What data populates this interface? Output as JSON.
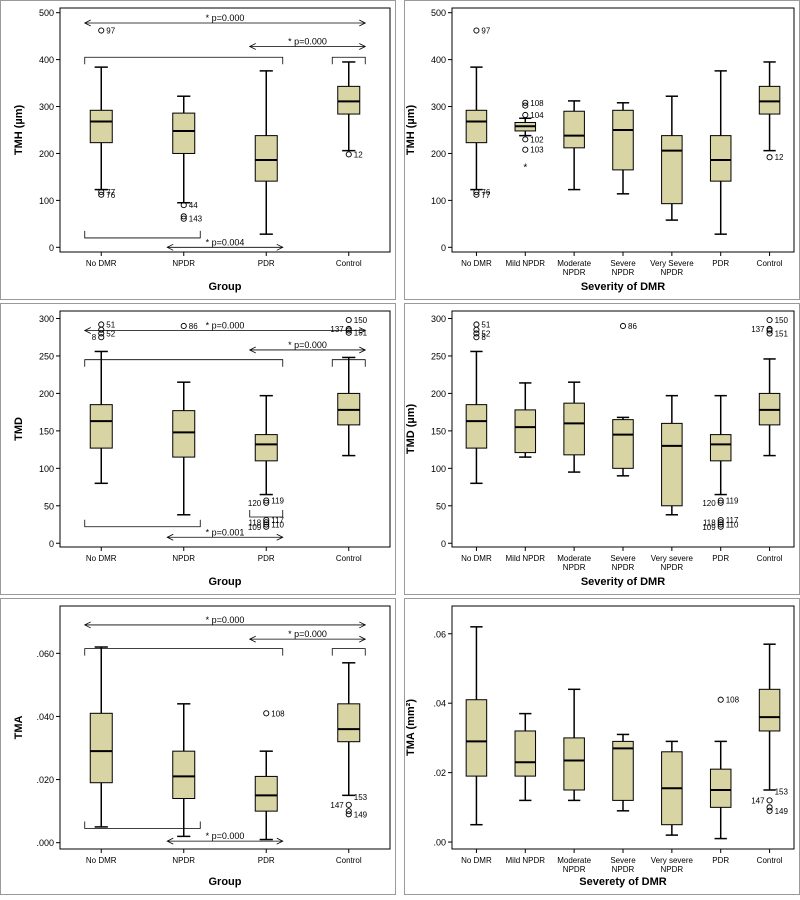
{
  "colors": {
    "box_fill": "#d9d4a3",
    "box_stroke": "#000000",
    "background": "#ffffff"
  },
  "chart_data": [
    {
      "type": "box",
      "xlabel": "Group",
      "ylabel": "TMH (µm)",
      "ylim": [
        -10,
        510
      ],
      "yticks": [
        0,
        100,
        200,
        300,
        400,
        500
      ],
      "ytick_labels": [
        "0",
        "100",
        "200",
        "300",
        "400",
        "500"
      ],
      "categories": [
        "No DMR",
        "NPDR",
        "PDR",
        "Control"
      ],
      "boxes": [
        {
          "min": 123,
          "q1": 223,
          "median": 268,
          "q3": 292,
          "max": 384,
          "outliers": [
            {
              "v": 462,
              "label": "97",
              "side": "r"
            },
            {
              "v": 118,
              "label": "77",
              "side": "r"
            },
            {
              "v": 112,
              "label": "76",
              "side": "r"
            }
          ]
        },
        {
          "min": 95,
          "q1": 200,
          "median": 248,
          "q3": 286,
          "max": 322,
          "outliers": [
            {
              "v": 90,
              "label": "44",
              "side": "r"
            },
            {
              "v": 66,
              "label": "",
              "side": "r"
            },
            {
              "v": 61,
              "label": "143",
              "side": "r"
            }
          ]
        },
        {
          "min": 28,
          "q1": 141,
          "median": 186,
          "q3": 238,
          "max": 376,
          "outliers": []
        },
        {
          "min": 206,
          "q1": 284,
          "median": 311,
          "q3": 343,
          "max": 395,
          "outliers": [
            {
              "v": 198,
              "label": "12",
              "side": "r"
            }
          ]
        }
      ],
      "comparisons": [
        {
          "label": "* p=0.000",
          "type": "arrow",
          "from": 0,
          "to": 3,
          "v": 478
        },
        {
          "label": "* p=0.000",
          "type": "arrow",
          "from": 2,
          "to": 3,
          "v": 428
        },
        {
          "label": "",
          "type": "bracket",
          "from": 0,
          "to": 2,
          "v": 405,
          "dir": "down"
        },
        {
          "label": "",
          "type": "bracket",
          "from": 3,
          "to": 3,
          "v": 405,
          "dir": "down"
        },
        {
          "label": "",
          "type": "bracket",
          "from": 0,
          "to": 1,
          "v": 20,
          "dir": "up"
        },
        {
          "label": "* p=0.004",
          "type": "arrow",
          "from": 1,
          "to": 2,
          "v": 0
        }
      ]
    },
    {
      "type": "box",
      "xlabel": "Severity of DMR",
      "ylabel": "TMH (µm)",
      "ylim": [
        -10,
        510
      ],
      "yticks": [
        0,
        100,
        200,
        300,
        400,
        500
      ],
      "ytick_labels": [
        "0",
        "100",
        "200",
        "300",
        "400",
        "500"
      ],
      "categories": [
        "No DMR",
        "Mild NPDR",
        "Moderate NPDR",
        "Severe NPDR",
        "Very Severe NPDR",
        "PDR",
        "Control"
      ],
      "boxes": [
        {
          "min": 123,
          "q1": 223,
          "median": 268,
          "q3": 292,
          "max": 384,
          "outliers": [
            {
              "v": 462,
              "label": "97",
              "side": "r"
            },
            {
              "v": 118,
              "label": "76",
              "side": "r"
            },
            {
              "v": 112,
              "label": "77",
              "side": "r"
            }
          ]
        },
        {
          "min": 238,
          "q1": 248,
          "median": 258,
          "q3": 266,
          "max": 275,
          "outliers": [
            {
              "v": 308,
              "label": "108",
              "side": "r"
            },
            {
              "v": 302,
              "label": "",
              "side": "r"
            },
            {
              "v": 282,
              "label": "104",
              "side": "r"
            },
            {
              "v": 230,
              "label": "102",
              "side": "r"
            },
            {
              "v": 208,
              "label": "103",
              "side": "r"
            },
            {
              "v": 172,
              "label": "",
              "side": "r",
              "marker": "star"
            }
          ]
        },
        {
          "min": 123,
          "q1": 212,
          "median": 238,
          "q3": 290,
          "max": 312,
          "outliers": []
        },
        {
          "min": 114,
          "q1": 165,
          "median": 250,
          "q3": 292,
          "max": 308,
          "outliers": []
        },
        {
          "min": 58,
          "q1": 93,
          "median": 206,
          "q3": 238,
          "max": 322,
          "outliers": []
        },
        {
          "min": 28,
          "q1": 141,
          "median": 186,
          "q3": 238,
          "max": 376,
          "outliers": []
        },
        {
          "min": 206,
          "q1": 284,
          "median": 311,
          "q3": 343,
          "max": 395,
          "outliers": [
            {
              "v": 192,
              "label": "12",
              "side": "r"
            }
          ]
        }
      ],
      "comparisons": []
    },
    {
      "type": "box",
      "xlabel": "Group",
      "ylabel": "TMD",
      "ylim": [
        -5,
        310
      ],
      "yticks": [
        0,
        50,
        100,
        150,
        200,
        250,
        300
      ],
      "ytick_labels": [
        "0",
        "50",
        "100",
        "150",
        "200",
        "250",
        "300"
      ],
      "categories": [
        "No DMR",
        "NPDR",
        "PDR",
        "Control"
      ],
      "boxes": [
        {
          "min": 80,
          "q1": 127,
          "median": 163,
          "q3": 185,
          "max": 256,
          "outliers": [
            {
              "v": 292,
              "label": "51",
              "side": "r"
            },
            {
              "v": 285,
              "label": "",
              "side": "r"
            },
            {
              "v": 280,
              "label": "52",
              "side": "r"
            },
            {
              "v": 275,
              "label": "8",
              "side": "l"
            }
          ]
        },
        {
          "min": 38,
          "q1": 115,
          "median": 148,
          "q3": 177,
          "max": 215,
          "outliers": [
            {
              "v": 290,
              "label": "86",
              "side": "r"
            }
          ]
        },
        {
          "min": 65,
          "q1": 110,
          "median": 132,
          "q3": 145,
          "max": 197,
          "outliers": [
            {
              "v": 57,
              "label": "119",
              "side": "r"
            },
            {
              "v": 54,
              "label": "120",
              "side": "l"
            },
            {
              "v": 31,
              "label": "117",
              "side": "r"
            },
            {
              "v": 28,
              "label": "118",
              "side": "l"
            },
            {
              "v": 25,
              "label": "110",
              "side": "r"
            },
            {
              "v": 22,
              "label": "109",
              "side": "l"
            }
          ]
        },
        {
          "min": 117,
          "q1": 158,
          "median": 178,
          "q3": 200,
          "max": 248,
          "outliers": [
            {
              "v": 298,
              "label": "150",
              "side": "r"
            },
            {
              "v": 286,
              "label": "137",
              "side": "l"
            },
            {
              "v": 284,
              "label": "",
              "side": "l"
            },
            {
              "v": 281,
              "label": "151",
              "side": "r"
            }
          ]
        }
      ],
      "comparisons": [
        {
          "label": "* p=0.000",
          "type": "arrow",
          "from": 0,
          "to": 3,
          "v": 284
        },
        {
          "label": "* p=0.000",
          "type": "arrow",
          "from": 2,
          "to": 3,
          "v": 258
        },
        {
          "label": "",
          "type": "bracket",
          "from": 0,
          "to": 2,
          "v": 245,
          "dir": "down"
        },
        {
          "label": "",
          "type": "bracket",
          "from": 3,
          "to": 3,
          "v": 245,
          "dir": "down"
        },
        {
          "label": "",
          "type": "bracket",
          "from": 0,
          "to": 1,
          "v": 22,
          "dir": "up"
        },
        {
          "label": "",
          "type": "bracket",
          "from": 2,
          "to": 2,
          "v": 35,
          "dir": "up"
        },
        {
          "label": "* p=0.001",
          "type": "arrow",
          "from": 1,
          "to": 2,
          "v": 8
        }
      ]
    },
    {
      "type": "box",
      "xlabel": "Severity of DMR",
      "ylabel": "TMD (µm)",
      "ylim": [
        -5,
        310
      ],
      "yticks": [
        0,
        50,
        100,
        150,
        200,
        250,
        300
      ],
      "ytick_labels": [
        "0",
        "50",
        "100",
        "150",
        "200",
        "250",
        "300"
      ],
      "categories": [
        "No DMR",
        "Mild NPDR",
        "Moderate NPDR",
        "Severe NPDR",
        "Very severe NPDR",
        "PDR",
        "Control"
      ],
      "boxes": [
        {
          "min": 80,
          "q1": 127,
          "median": 163,
          "q3": 185,
          "max": 256,
          "outliers": [
            {
              "v": 292,
              "label": "51",
              "side": "r"
            },
            {
              "v": 285,
              "label": "",
              "side": "r"
            },
            {
              "v": 280,
              "label": "52",
              "side": "r"
            },
            {
              "v": 275,
              "label": "8",
              "side": "r"
            }
          ]
        },
        {
          "min": 115,
          "q1": 121,
          "median": 155,
          "q3": 178,
          "max": 214,
          "outliers": []
        },
        {
          "min": 95,
          "q1": 118,
          "median": 160,
          "q3": 187,
          "max": 215,
          "outliers": []
        },
        {
          "min": 90,
          "q1": 100,
          "median": 145,
          "q3": 165,
          "max": 168,
          "outliers": [
            {
              "v": 290,
              "label": "86",
              "side": "r"
            }
          ]
        },
        {
          "min": 38,
          "q1": 50,
          "median": 130,
          "q3": 160,
          "max": 197,
          "outliers": []
        },
        {
          "min": 65,
          "q1": 110,
          "median": 132,
          "q3": 145,
          "max": 197,
          "outliers": [
            {
              "v": 57,
              "label": "119",
              "side": "r"
            },
            {
              "v": 54,
              "label": "120",
              "side": "l"
            },
            {
              "v": 31,
              "label": "117",
              "side": "r"
            },
            {
              "v": 28,
              "label": "118",
              "side": "l"
            },
            {
              "v": 25,
              "label": "110",
              "side": "r"
            },
            {
              "v": 22,
              "label": "109",
              "side": "l"
            }
          ]
        },
        {
          "min": 117,
          "q1": 158,
          "median": 178,
          "q3": 200,
          "max": 246,
          "outliers": [
            {
              "v": 298,
              "label": "150",
              "side": "r"
            },
            {
              "v": 286,
              "label": "137",
              "side": "l"
            },
            {
              "v": 284,
              "label": "",
              "side": "l"
            },
            {
              "v": 280,
              "label": "151",
              "side": "r"
            }
          ]
        }
      ],
      "comparisons": []
    },
    {
      "type": "box",
      "xlabel": "Group",
      "ylabel": "TMA",
      "ylim": [
        -0.002,
        0.075
      ],
      "yticks": [
        0,
        0.02,
        0.04,
        0.06
      ],
      "ytick_labels": [
        ".000",
        ".020",
        ".040",
        ".060"
      ],
      "categories": [
        "No DMR",
        "NPDR",
        "PDR",
        "Control"
      ],
      "boxes": [
        {
          "min": 0.005,
          "q1": 0.019,
          "median": 0.029,
          "q3": 0.041,
          "max": 0.062,
          "outliers": []
        },
        {
          "min": 0.002,
          "q1": 0.014,
          "median": 0.021,
          "q3": 0.029,
          "max": 0.044,
          "outliers": []
        },
        {
          "min": 0.001,
          "q1": 0.01,
          "median": 0.015,
          "q3": 0.021,
          "max": 0.029,
          "outliers": [
            {
              "v": 0.041,
              "label": "108",
              "side": "r"
            }
          ]
        },
        {
          "min": 0.015,
          "q1": 0.032,
          "median": 0.036,
          "q3": 0.044,
          "max": 0.057,
          "outliers": [
            {
              "v": 0.012,
              "label": "147",
              "side": "l"
            },
            {
              "v": 0.01,
              "label": "",
              "side": "l"
            },
            {
              "v": 0.009,
              "label": "149",
              "side": "r"
            }
          ]
        }
      ],
      "extra_labels": [
        {
          "cat": 3,
          "v": 0.0145,
          "text": "153"
        }
      ],
      "comparisons": [
        {
          "label": "* p=0.000",
          "type": "arrow",
          "from": 0,
          "to": 3,
          "v": 0.069
        },
        {
          "label": "* p=0.000",
          "type": "arrow",
          "from": 2,
          "to": 3,
          "v": 0.0645
        },
        {
          "label": "",
          "type": "bracket",
          "from": 0,
          "to": 2,
          "v": 0.0615,
          "dir": "down"
        },
        {
          "label": "",
          "type": "bracket",
          "from": 3,
          "to": 3,
          "v": 0.0615,
          "dir": "down"
        },
        {
          "label": "",
          "type": "bracket",
          "from": 0,
          "to": 1,
          "v": 0.0045,
          "dir": "up"
        },
        {
          "label": "* p=0.000",
          "type": "arrow",
          "from": 1,
          "to": 2,
          "v": 0.0005
        }
      ]
    },
    {
      "type": "box",
      "xlabel": "Severety of DMR",
      "ylabel": "TMA (mm²)",
      "ylim": [
        -0.002,
        0.068
      ],
      "yticks": [
        0,
        0.02,
        0.04,
        0.06
      ],
      "ytick_labels": [
        ".00",
        ".02",
        ".04",
        ".06"
      ],
      "categories": [
        "No DMR",
        "Mild NPDR",
        "Moderate NPDR",
        "Severe NPDR",
        "Very severe NPDR",
        "PDR",
        "Control"
      ],
      "boxes": [
        {
          "min": 0.005,
          "q1": 0.019,
          "median": 0.029,
          "q3": 0.041,
          "max": 0.062,
          "outliers": []
        },
        {
          "min": 0.012,
          "q1": 0.019,
          "median": 0.023,
          "q3": 0.032,
          "max": 0.037,
          "outliers": []
        },
        {
          "min": 0.012,
          "q1": 0.015,
          "median": 0.0235,
          "q3": 0.03,
          "max": 0.044,
          "outliers": []
        },
        {
          "min": 0.009,
          "q1": 0.012,
          "median": 0.027,
          "q3": 0.029,
          "max": 0.031,
          "outliers": []
        },
        {
          "min": 0.002,
          "q1": 0.005,
          "median": 0.0155,
          "q3": 0.026,
          "max": 0.029,
          "outliers": []
        },
        {
          "min": 0.001,
          "q1": 0.01,
          "median": 0.015,
          "q3": 0.021,
          "max": 0.029,
          "outliers": [
            {
              "v": 0.041,
              "label": "108",
              "side": "r"
            }
          ]
        },
        {
          "min": 0.015,
          "q1": 0.032,
          "median": 0.036,
          "q3": 0.044,
          "max": 0.057,
          "outliers": [
            {
              "v": 0.012,
              "label": "147",
              "side": "l"
            },
            {
              "v": 0.01,
              "label": "",
              "side": "l"
            },
            {
              "v": 0.009,
              "label": "149",
              "side": "r"
            }
          ]
        }
      ],
      "extra_labels": [
        {
          "cat": 6,
          "v": 0.0145,
          "text": "153"
        }
      ],
      "comparisons": []
    }
  ]
}
